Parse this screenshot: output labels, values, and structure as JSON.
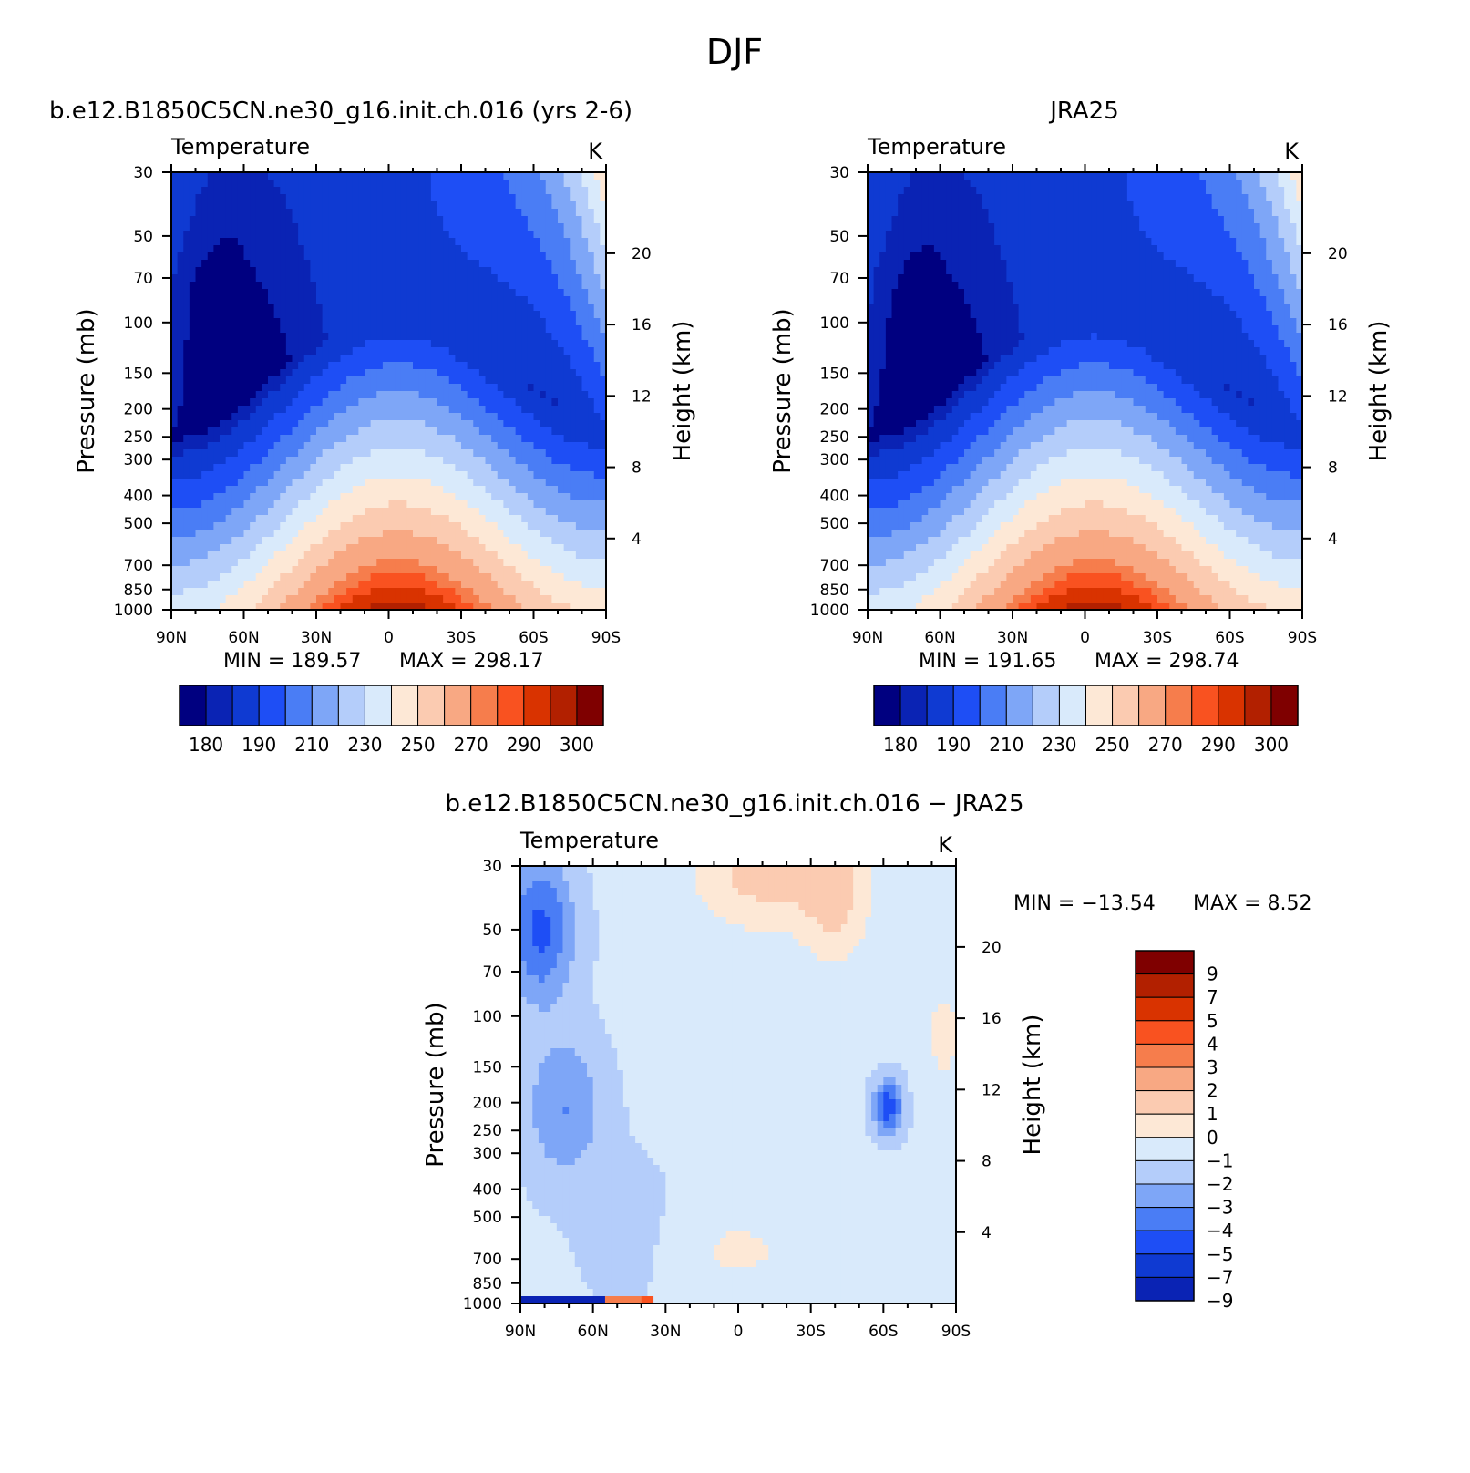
{
  "figure_title": "DJF",
  "lat_ticks": [
    "90N",
    "60N",
    "30N",
    "0",
    "30S",
    "60S",
    "90S"
  ],
  "pressure_ticks": [
    30,
    50,
    70,
    100,
    150,
    200,
    250,
    300,
    400,
    500,
    700,
    850,
    1000
  ],
  "height_ticks": [
    4,
    8,
    12,
    16,
    20
  ],
  "y_label": "Pressure (mb)",
  "y2_label": "Height (km)",
  "panel_left_label": "Temperature",
  "panel_right_label": "K",
  "colors": {
    "abs": [
      "#000080",
      "#0a23b4",
      "#0f3ad2",
      "#1e4ef5",
      "#4a7df5",
      "#7ea6f7",
      "#b4cdfa",
      "#d9eafb",
      "#fde8d6",
      "#fbcbb1",
      "#f8a883",
      "#f67d4c",
      "#f95220",
      "#d93300",
      "#b22000",
      "#7f0000"
    ],
    "diff": [
      "#00008a",
      "#0a23b4",
      "#0f3ad2",
      "#1e4ef5",
      "#4a7df5",
      "#7ea6f7",
      "#b4cdfa",
      "#d9eafb",
      "#fde8d6",
      "#fbcbb1",
      "#f8a883",
      "#f67d4c",
      "#f95220",
      "#d93300",
      "#b22000",
      "#7f0000"
    ]
  },
  "chart_data": [
    {
      "type": "heatmap",
      "id": "model",
      "title": "b.e12.B1850C5CN.ne30_g16.init.ch.016 (yrs 2-6)",
      "left_label": "Temperature",
      "right_label": "K",
      "xlabel": "",
      "ylabel": "Pressure (mb)",
      "y2label": "Height (km)",
      "x_ticks": [
        "90N",
        "60N",
        "30N",
        "0",
        "30S",
        "60S",
        "90S"
      ],
      "y_ticks": [
        30,
        50,
        70,
        100,
        150,
        200,
        250,
        300,
        400,
        500,
        700,
        850,
        1000
      ],
      "y2_ticks": [
        4,
        8,
        12,
        16,
        20
      ],
      "y_scale": "log",
      "xlim": [
        90,
        -90
      ],
      "ylim": [
        1000,
        30
      ],
      "min_text": "MIN =  189.57",
      "max_text": "MAX =  298.17",
      "min": 189.57,
      "max": 298.17,
      "colorbar_labels": [
        "180",
        "190",
        "210",
        "230",
        "250",
        "270",
        "290",
        "300"
      ],
      "colorbar_orientation": "horizontal"
    },
    {
      "type": "heatmap",
      "id": "obs",
      "title": "JRA25",
      "left_label": "Temperature",
      "right_label": "K",
      "xlabel": "",
      "ylabel": "Pressure (mb)",
      "y2label": "Height (km)",
      "x_ticks": [
        "90N",
        "60N",
        "30N",
        "0",
        "30S",
        "60S",
        "90S"
      ],
      "y_ticks": [
        30,
        50,
        70,
        100,
        150,
        200,
        250,
        300,
        400,
        500,
        700,
        850,
        1000
      ],
      "y2_ticks": [
        4,
        8,
        12,
        16,
        20
      ],
      "y_scale": "log",
      "xlim": [
        90,
        -90
      ],
      "ylim": [
        1000,
        30
      ],
      "min_text": "MIN =  191.65",
      "max_text": "MAX =  298.74",
      "min": 191.65,
      "max": 298.74,
      "colorbar_labels": [
        "180",
        "190",
        "210",
        "230",
        "250",
        "270",
        "290",
        "300"
      ],
      "colorbar_orientation": "horizontal"
    },
    {
      "type": "heatmap",
      "id": "diff",
      "title": "b.e12.B1850C5CN.ne30_g16.init.ch.016 − JRA25",
      "left_label": "Temperature",
      "right_label": "K",
      "xlabel": "",
      "ylabel": "Pressure (mb)",
      "y2label": "Height (km)",
      "x_ticks": [
        "90N",
        "60N",
        "30N",
        "0",
        "30S",
        "60S",
        "90S"
      ],
      "y_ticks": [
        30,
        50,
        70,
        100,
        150,
        200,
        250,
        300,
        400,
        500,
        700,
        850,
        1000
      ],
      "y2_ticks": [
        4,
        8,
        12,
        16,
        20
      ],
      "y_scale": "log",
      "xlim": [
        90,
        -90
      ],
      "ylim": [
        1000,
        30
      ],
      "min_text": "MIN = −13.54",
      "max_text": "MAX =    8.52",
      "min": -13.54,
      "max": 8.52,
      "colorbar_labels": [
        "9",
        "7",
        "5",
        "4",
        "3",
        "2",
        "1",
        "0",
        "−1",
        "−2",
        "−3",
        "−4",
        "−5",
        "−7",
        "−9"
      ],
      "colorbar_orientation": "vertical"
    }
  ]
}
